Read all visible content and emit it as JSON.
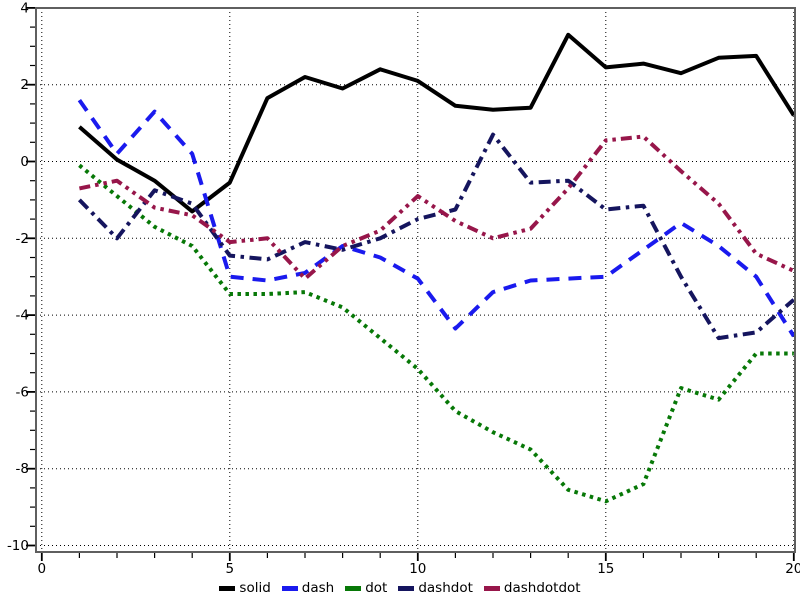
{
  "chart_data": {
    "type": "line",
    "title": "",
    "xlabel": "",
    "ylabel": "",
    "xlim": [
      0,
      20.2
    ],
    "ylim": [
      -10.4,
      4.1
    ],
    "grid": true,
    "grid_style": "dotted",
    "legend_position": "bottom-center",
    "background": "#ffffff",
    "frame_color": "#5f5f5f",
    "axis_color": "#000000",
    "x": [
      1,
      2,
      3,
      4,
      5,
      6,
      7,
      8,
      9,
      10,
      11,
      12,
      13,
      14,
      15,
      16,
      17,
      18,
      19,
      20
    ],
    "x_major_ticks": [
      0,
      5,
      10,
      15,
      20
    ],
    "x_tick_labels": [
      "0",
      "5",
      "10",
      "15",
      "20"
    ],
    "x_minor_tick_step": 1,
    "y_major_ticks": [
      4,
      2,
      0,
      -2,
      -4,
      -6,
      -8,
      -10
    ],
    "y_tick_labels": [
      "4",
      "2",
      "0",
      "-2",
      "-4",
      "-6",
      "-8",
      "-10"
    ],
    "y_minor_tick_step": 0.5,
    "series": [
      {
        "name": "solid",
        "line_style": "solid",
        "color": "#000000",
        "values": [
          0.9,
          0.05,
          -0.5,
          -1.3,
          -0.55,
          1.65,
          2.2,
          1.9,
          2.4,
          2.1,
          1.45,
          1.35,
          1.4,
          3.3,
          2.45,
          2.55,
          2.3,
          2.7,
          2.75,
          1.2
        ]
      },
      {
        "name": "dash",
        "line_style": "dash",
        "color": "#1a1aee",
        "values": [
          1.6,
          0.2,
          1.3,
          0.2,
          -3.0,
          -3.1,
          -2.9,
          -2.2,
          -2.5,
          -3.05,
          -4.35,
          -3.4,
          -3.1,
          -3.05,
          -3.0,
          -2.3,
          -1.6,
          -2.2,
          -3.0,
          -4.55
        ]
      },
      {
        "name": "dot",
        "line_style": "dot",
        "color": "#077807",
        "values": [
          -0.1,
          -0.9,
          -1.7,
          -2.2,
          -3.45,
          -3.45,
          -3.4,
          -3.8,
          -4.6,
          -5.4,
          -6.5,
          -7.05,
          -7.5,
          -8.55,
          -8.85,
          -8.4,
          -5.9,
          -6.2,
          -5.0,
          -5.0
        ]
      },
      {
        "name": "dashdot",
        "line_style": "dashdot",
        "color": "#15155e",
        "values": [
          -1.0,
          -2.0,
          -0.75,
          -1.1,
          -2.45,
          -2.55,
          -2.1,
          -2.3,
          -2.0,
          -1.5,
          -1.25,
          0.7,
          -0.55,
          -0.5,
          -1.25,
          -1.15,
          -3.0,
          -4.6,
          -4.45,
          -3.6
        ]
      },
      {
        "name": "dashdotdot",
        "line_style": "dashdotdot",
        "color": "#97164a",
        "values": [
          -0.7,
          -0.5,
          -1.2,
          -1.4,
          -2.1,
          -2.0,
          -3.05,
          -2.2,
          -1.8,
          -0.9,
          -1.55,
          -2.0,
          -1.75,
          -0.7,
          0.55,
          0.65,
          -0.25,
          -1.1,
          -2.4,
          -2.85
        ]
      }
    ]
  }
}
